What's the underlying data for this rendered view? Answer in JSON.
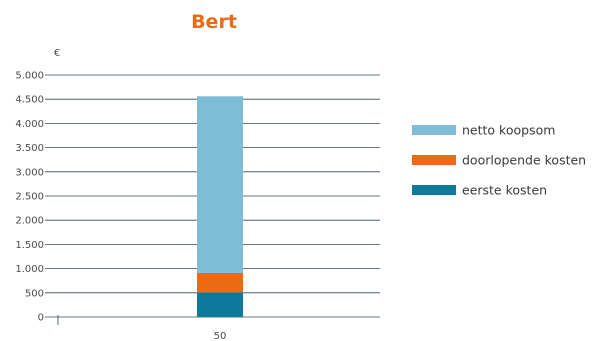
{
  "chart_data": {
    "type": "bar",
    "stacked": true,
    "title": "Bert",
    "ylabel": "€",
    "xlabel": "",
    "categories": [
      "50"
    ],
    "ylim": [
      0,
      5000
    ],
    "yticks": [
      0,
      500,
      1000,
      1500,
      2000,
      2500,
      3000,
      3500,
      4000,
      4500,
      5000
    ],
    "ytick_labels": [
      "0",
      "500",
      "1.000",
      "1.500",
      "2.000",
      "2.500",
      "3.000",
      "3.500",
      "4.000",
      "4.500",
      "5.000"
    ],
    "grid": true,
    "legend_position": "right",
    "series": [
      {
        "name": "eerste kosten",
        "values": [
          510
        ],
        "color": "#0d7a9c"
      },
      {
        "name": "doorlopende kosten",
        "values": [
          400
        ],
        "color": "#eb6a16"
      },
      {
        "name": "netto koopsom",
        "values": [
          3650
        ],
        "color": "#7fbcd6"
      }
    ],
    "legend_order": [
      "netto koopsom",
      "doorlopende kosten",
      "eerste kosten"
    ],
    "colors": {
      "title": "#eb6a16",
      "gridline": "#2e4a66"
    }
  }
}
